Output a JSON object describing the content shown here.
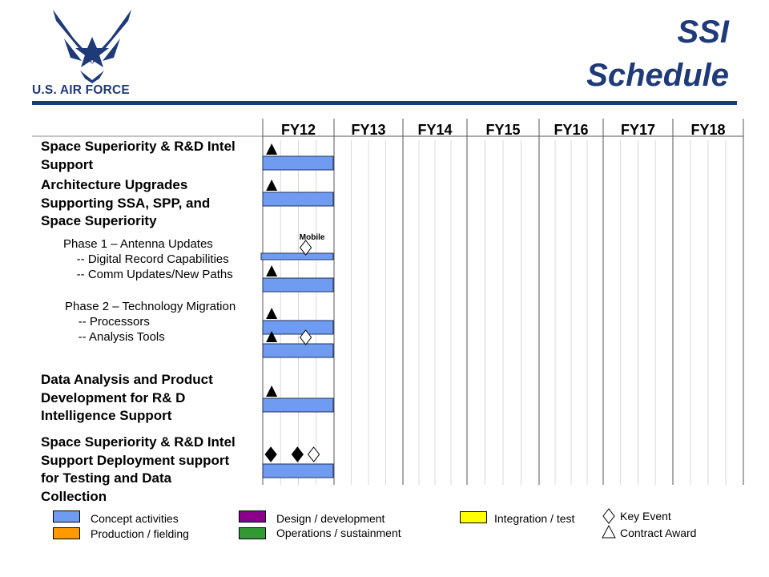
{
  "header": {
    "logo_text": "U.S. AIR FORCE",
    "title_line1": "SSI",
    "title_line2": "Schedule",
    "accent_color": "#1f3a78"
  },
  "chart_data": {
    "type": "gantt",
    "fiscal_years": [
      "FY12",
      "FY13",
      "FY14",
      "FY15",
      "FY16",
      "FY17",
      "FY18"
    ],
    "quarters_per_year": 4,
    "rows": [
      {
        "label": "Space Superiority & R&D Intel\nSupport",
        "style": "bold"
      },
      {
        "label": "Architecture Upgrades\nSupporting SSA, SPP, and\nSpace Superiority",
        "style": "bold"
      },
      {
        "label": "Phase 1 – Antenna Updates\n    -- Digital Record Capabilities\n    -- Comm Updates/New Paths",
        "style": "normal"
      },
      {
        "label": "Phase 2 – Technology Migration\n    -- Processors\n    -- Analysis Tools",
        "style": "normal"
      },
      {
        "label": "Data Analysis and Product\nDevelopment for R& D\nIntelligence Support",
        "style": "bold"
      },
      {
        "label": "Space Superiority & R&D Intel\nSupport Deployment support\nfor Testing and Data\nCollection",
        "style": "bold"
      }
    ],
    "bars": [
      {
        "task": "Space Superiority & R&D Intel Support",
        "activity": "Concept activities",
        "start": "FY12 Q1",
        "end": "FY12 Q4"
      },
      {
        "task": "Architecture Upgrades Supporting SSA, SPP, and Space Superiority",
        "activity": "Concept activities",
        "start": "FY12 Q1",
        "end": "FY12 Q4"
      },
      {
        "task": "Digital Record Capabilities",
        "activity": "Concept activities",
        "start": "FY12 Q1",
        "end": "FY12 Q4"
      },
      {
        "task": "Comm Updates/New Paths",
        "activity": "Concept activities",
        "start": "FY12 Q1",
        "end": "FY12 Q4"
      },
      {
        "task": "Processors",
        "activity": "Concept activities",
        "start": "FY12 Q1",
        "end": "FY12 Q4"
      },
      {
        "task": "Analysis Tools",
        "activity": "Concept activities",
        "start": "FY12 Q1",
        "end": "FY12 Q4"
      },
      {
        "task": "Data Analysis and Product Development for R& D Intelligence Support",
        "activity": "Concept activities",
        "start": "FY12 Q1",
        "end": "FY12 Q4"
      },
      {
        "task": "Space Superiority & R&D Intel Support Deployment support for Testing and Data Collection",
        "activity": "Concept activities",
        "start": "FY12 Q1",
        "end": "FY12 Q4"
      }
    ],
    "milestones": [
      {
        "task": "Space Superiority & R&D Intel Support",
        "marker": "filled-triangle",
        "at": "FY12 Q1"
      },
      {
        "task": "Architecture Upgrades Supporting SSA, SPP, and Space Superiority",
        "marker": "filled-triangle",
        "at": "FY12 Q1"
      },
      {
        "task": "Digital Record Capabilities",
        "marker": "open-diamond",
        "at": "FY12 Q3",
        "label": "Mobile"
      },
      {
        "task": "Comm Updates/New Paths",
        "marker": "filled-triangle",
        "at": "FY12 Q1"
      },
      {
        "task": "Processors",
        "marker": "filled-triangle",
        "at": "FY12 Q1"
      },
      {
        "task": "Analysis Tools",
        "marker": "filled-triangle",
        "at": "FY12 Q1"
      },
      {
        "task": "Analysis Tools",
        "marker": "open-diamond",
        "at": "FY12 Q3"
      },
      {
        "task": "Data Analysis and Product Development for R& D Intelligence Support",
        "marker": "filled-triangle",
        "at": "FY12 Q1"
      },
      {
        "task": "Space Superiority & R&D Intel Support Deployment support for Testing and Data Collection",
        "marker": "filled-diamond",
        "at": "FY12 Q1"
      },
      {
        "task": "Space Superiority & R&D Intel Support Deployment support for Testing and Data Collection",
        "marker": "filled-diamond",
        "at": "FY12 Q2"
      },
      {
        "task": "Space Superiority & R&D Intel Support Deployment support for Testing and Data Collection",
        "marker": "open-diamond",
        "at": "FY12 Q3"
      }
    ],
    "legend": [
      {
        "label": "Concept activities",
        "color": "#6f9cf0"
      },
      {
        "label": "Production / fielding",
        "color": "#ff9900"
      },
      {
        "label": "Design / development",
        "color": "#8b008b"
      },
      {
        "label": "Operations / sustainment",
        "color": "#339933"
      },
      {
        "label": "Integration / test",
        "color": "#ffff00"
      }
    ],
    "marker_legend": [
      {
        "label": "Key Event",
        "marker": "open-diamond"
      },
      {
        "label": "Contract Award",
        "marker": "open-triangle"
      }
    ]
  }
}
